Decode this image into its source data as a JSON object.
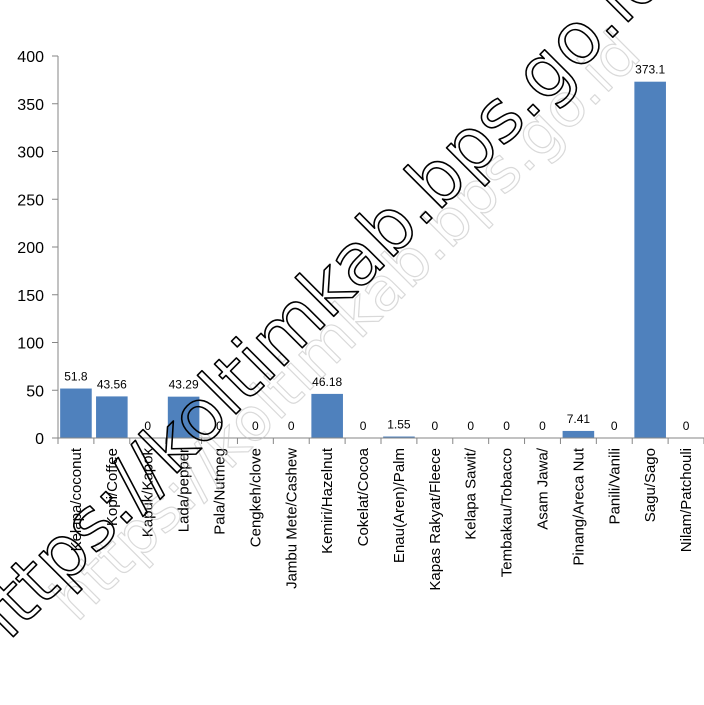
{
  "chart_data": {
    "type": "bar",
    "title": "",
    "xlabel": "",
    "ylabel": "",
    "ylim": [
      0,
      400
    ],
    "yticks": [
      0,
      50,
      100,
      150,
      200,
      250,
      300,
      350,
      400
    ],
    "grid": false,
    "legend": "none",
    "bar_color": "#4F81BD",
    "categories": [
      "Kelapa/coconut",
      "Kopi/Coffee",
      "Kapuk/Kapok",
      "Lada/pepper",
      "Pala/Nutmeg",
      "Cengkeh/clove",
      "Jambu Mete/Cashew",
      "Kemiri/Hazelnut",
      "Cokelat/Cocoa",
      "Enau(Aren)/Palm",
      "Kapas Rakyat/Fleece",
      "Kelapa Sawit/",
      "Tembakau/Tobacco",
      "Asam Jawa/",
      "Pinang/Areca Nut",
      "Panili/Vanili",
      "Sagu/Sago",
      "Nilam/Patchouli"
    ],
    "values": [
      51.8,
      43.56,
      0,
      43.29,
      0,
      0,
      0,
      46.18,
      0,
      1.55,
      0,
      0,
      0,
      0,
      7.41,
      0,
      373.1,
      0
    ],
    "data_labels": [
      "51.8",
      "43.56",
      "0",
      "43.29",
      "0",
      "0",
      "0",
      "46.18",
      "0",
      "1.55",
      "0",
      "0",
      "0",
      "0",
      "7.41",
      "0",
      "373.1",
      "0"
    ]
  },
  "watermark": {
    "text": "https://koltimkab.bps.go.id"
  }
}
